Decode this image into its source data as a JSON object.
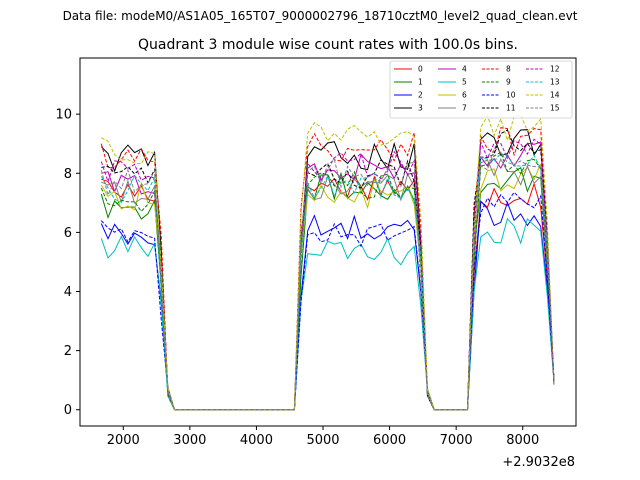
{
  "figure": {
    "suptitle": "Data file: modeM0/AS1A05_165T07_9000002796_18710cztM0_level2_quad_clean.evt",
    "offset_text": "+2.9032e8"
  },
  "chart_data": {
    "type": "line",
    "title": "Quadrant 3 module wise count rates with 100.0s bins.",
    "xlabel": "",
    "ylabel": "",
    "x_offset": 290320000,
    "xlim": [
      1350,
      8800
    ],
    "ylim": [
      -0.55,
      11.9
    ],
    "xticks": [
      2000,
      3000,
      4000,
      5000,
      6000,
      7000,
      8000
    ],
    "xtick_labels": [
      "2000",
      "3000",
      "4000",
      "5000",
      "6000",
      "7000",
      "8000"
    ],
    "yticks": [
      0,
      2,
      4,
      6,
      8,
      10
    ],
    "ytick_labels": [
      "0",
      "2",
      "4",
      "6",
      "8",
      "10"
    ],
    "legend_position": "top-right",
    "segments": [
      {
        "start": 1670,
        "end": 2670,
        "step": 100
      },
      {
        "start": 2670,
        "end": 4670,
        "step": 100,
        "gap": true
      },
      {
        "start": 4670,
        "end": 6570,
        "step": 100
      },
      {
        "start": 6570,
        "end": 7270,
        "step": 100,
        "gap": true
      },
      {
        "start": 7270,
        "end": 8470,
        "step": 100
      }
    ],
    "series": [
      {
        "name": "0",
        "color": "#ff0000",
        "dash": "solid",
        "levels": [
          7.4,
          7.6,
          7.3
        ]
      },
      {
        "name": "1",
        "color": "#008000",
        "dash": "solid",
        "levels": [
          6.9,
          7.5,
          7.8
        ]
      },
      {
        "name": "2",
        "color": "#0000ff",
        "dash": "solid",
        "levels": [
          5.9,
          6.1,
          6.7
        ]
      },
      {
        "name": "3",
        "color": "#000000",
        "dash": "solid",
        "levels": [
          8.5,
          8.6,
          9.0
        ]
      },
      {
        "name": "4",
        "color": "#bf00bf",
        "dash": "solid",
        "levels": [
          7.6,
          8.2,
          8.6
        ]
      },
      {
        "name": "5",
        "color": "#00bfbf",
        "dash": "solid",
        "levels": [
          5.4,
          5.3,
          6.1
        ]
      },
      {
        "name": "6",
        "color": "#bfbf00",
        "dash": "solid",
        "levels": [
          7.2,
          7.3,
          7.9
        ]
      },
      {
        "name": "7",
        "color": "#808080",
        "dash": "solid",
        "levels": [
          7.3,
          7.5,
          8.0
        ]
      },
      {
        "name": "8",
        "color": "#ff0000",
        "dash": "dashed",
        "levels": [
          8.6,
          8.9,
          9.1
        ]
      },
      {
        "name": "9",
        "color": "#008000",
        "dash": "dashed",
        "levels": [
          7.1,
          7.6,
          8.3
        ]
      },
      {
        "name": "10",
        "color": "#0000ff",
        "dash": "dashed",
        "levels": [
          6.0,
          5.9,
          6.9
        ]
      },
      {
        "name": "11",
        "color": "#000000",
        "dash": "dashed",
        "levels": [
          7.8,
          8.0,
          9.0
        ]
      },
      {
        "name": "12",
        "color": "#bf00bf",
        "dash": "dashed",
        "levels": [
          8.0,
          8.3,
          8.7
        ]
      },
      {
        "name": "13",
        "color": "#00bfbf",
        "dash": "dashed",
        "levels": [
          7.5,
          7.6,
          8.4
        ]
      },
      {
        "name": "14",
        "color": "#bfbf00",
        "dash": "dashed",
        "levels": [
          8.8,
          9.3,
          9.6
        ]
      },
      {
        "name": "15",
        "color": "#808080",
        "dash": "dashed",
        "levels": [
          7.7,
          8.0,
          8.5
        ]
      }
    ]
  }
}
